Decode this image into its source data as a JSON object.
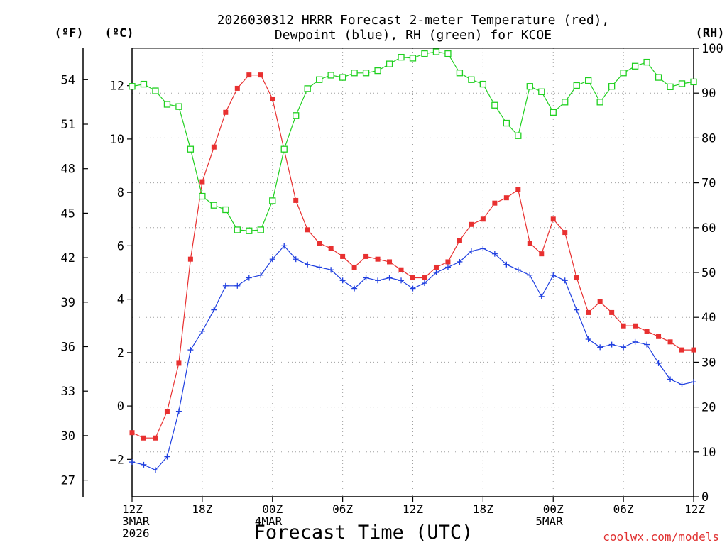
{
  "chart_data": {
    "type": "line",
    "title_line1": "2026030312 HRRR Forecast 2-meter Temperature (red),",
    "title_line2": "Dewpoint (blue), RH (green) for KCOE",
    "left_unit_f": "(ºF)",
    "left_unit_c": "(ºC)",
    "right_unit": "(RH)",
    "xlabel": "Forecast Time (UTC)",
    "credit": "coolwx.com/models",
    "x_range_hours": [
      0,
      48
    ],
    "x_ticks": [
      {
        "hour": 0,
        "label": "12Z",
        "sub1": "3MAR",
        "sub2": "2026"
      },
      {
        "hour": 6,
        "label": "18Z",
        "sub1": "",
        "sub2": ""
      },
      {
        "hour": 12,
        "label": "00Z",
        "sub1": "4MAR",
        "sub2": ""
      },
      {
        "hour": 18,
        "label": "06Z",
        "sub1": "",
        "sub2": ""
      },
      {
        "hour": 24,
        "label": "12Z",
        "sub1": "",
        "sub2": ""
      },
      {
        "hour": 30,
        "label": "18Z",
        "sub1": "",
        "sub2": ""
      },
      {
        "hour": 36,
        "label": "00Z",
        "sub1": "5MAR",
        "sub2": ""
      },
      {
        "hour": 42,
        "label": "06Z",
        "sub1": "",
        "sub2": ""
      },
      {
        "hour": 48,
        "label": "12Z",
        "sub1": "",
        "sub2": ""
      }
    ],
    "y_celsius_range": [
      -3.4,
      13.4
    ],
    "y_celsius_ticks": [
      -2,
      0,
      2,
      4,
      6,
      8,
      10,
      12
    ],
    "y_fahrenheit_ticks": [
      27,
      30,
      33,
      36,
      39,
      42,
      45,
      48,
      51,
      54
    ],
    "y_rh_range": [
      0,
      100
    ],
    "y_rh_ticks": [
      0,
      10,
      20,
      30,
      40,
      50,
      60,
      70,
      80,
      90,
      100
    ],
    "grid": true,
    "series": [
      {
        "name": "Temperature",
        "color": "#e83030",
        "marker": "filled-square",
        "axis": "celsius",
        "values": [
          -1.0,
          -1.2,
          -1.2,
          -0.2,
          1.6,
          5.5,
          8.4,
          9.7,
          11.0,
          11.9,
          12.4,
          12.4,
          11.5,
          9.6,
          7.7,
          6.6,
          6.1,
          5.9,
          5.6,
          5.2,
          5.6,
          5.5,
          5.4,
          5.1,
          4.8,
          4.8,
          5.2,
          5.4,
          6.2,
          6.8,
          7.0,
          7.6,
          7.8,
          8.1,
          6.1,
          5.7,
          7.0,
          6.5,
          4.8,
          3.5,
          3.9,
          3.5,
          3.0,
          3.0,
          2.8,
          2.6,
          2.4,
          2.1,
          2.1
        ]
      },
      {
        "name": "Dewpoint",
        "color": "#2040e0",
        "marker": "plus",
        "axis": "celsius",
        "values": [
          -2.1,
          -2.2,
          -2.4,
          -1.9,
          -0.2,
          2.1,
          2.8,
          3.6,
          4.5,
          4.5,
          4.8,
          4.9,
          5.5,
          6.0,
          5.5,
          5.3,
          5.2,
          5.1,
          4.7,
          4.4,
          4.8,
          4.7,
          4.8,
          4.7,
          4.4,
          4.6,
          5.0,
          5.2,
          5.4,
          5.8,
          5.9,
          5.7,
          5.3,
          5.1,
          4.9,
          4.1,
          4.9,
          4.7,
          3.6,
          2.5,
          2.2,
          2.3,
          2.2,
          2.4,
          2.3,
          1.6,
          1.0,
          0.8,
          0.9
        ]
      },
      {
        "name": "RH",
        "color": "#20d020",
        "marker": "open-square",
        "axis": "rh",
        "values": [
          91.5,
          92,
          90.5,
          87.5,
          87,
          77.5,
          67,
          65,
          64,
          59.5,
          59.3,
          59.5,
          66,
          77.5,
          85,
          91,
          93,
          94,
          93.5,
          94.5,
          94.5,
          95,
          96.5,
          98,
          97.8,
          98.8,
          99.2,
          98.8,
          94.5,
          93,
          92,
          87.3,
          83.3,
          80.5,
          91.5,
          90.3,
          85.7,
          88,
          91.7,
          92.8,
          88,
          91.5,
          94.5,
          96,
          96.9,
          93.5,
          91.4,
          92.1,
          92.5
        ]
      }
    ]
  }
}
